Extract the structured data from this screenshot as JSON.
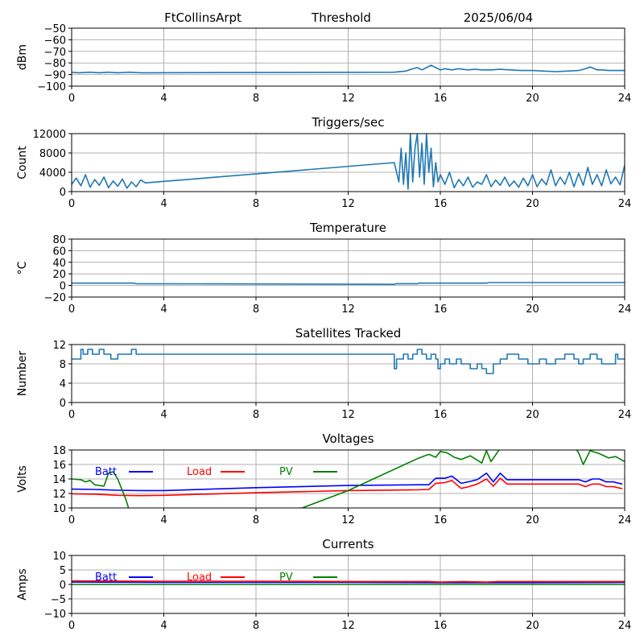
{
  "header": {
    "station": "FtCollinsArpt",
    "mode": "Threshold",
    "date": "2025/06/04"
  },
  "colors": {
    "series": "#1f77b4",
    "grid": "#b0b0b0",
    "batt": "#0000ff",
    "load": "#ff0000",
    "pv": "#008000"
  },
  "chart_data": [
    {
      "type": "line",
      "title": "",
      "xlabel": "",
      "ylabel": "dBm",
      "xlim": [
        0,
        24
      ],
      "ylim": [
        -100,
        -50
      ],
      "xticks": [
        0,
        4,
        8,
        12,
        16,
        20,
        24
      ],
      "yticks": [
        -100,
        -90,
        -80,
        -70,
        -60,
        -50
      ],
      "grid": true,
      "series": [
        {
          "color": "series",
          "x": [
            0,
            0.3,
            0.8,
            1.2,
            1.6,
            2.0,
            2.5,
            3.0,
            3.2,
            14.0,
            14.5,
            14.8,
            15.0,
            15.2,
            15.4,
            15.6,
            15.8,
            16.0,
            16.2,
            16.5,
            16.8,
            17.2,
            17.5,
            17.8,
            18.2,
            18.6,
            19.0,
            19.5,
            20.0,
            20.5,
            21.0,
            21.5,
            22.0,
            22.3,
            22.5,
            22.8,
            23.0,
            23.3,
            23.6,
            24.0
          ],
          "y": [
            -88,
            -88.5,
            -88,
            -88.5,
            -88,
            -88.5,
            -88,
            -88.5,
            -88.5,
            -88,
            -87,
            -85,
            -84,
            -86,
            -84,
            -82,
            -84,
            -86,
            -85,
            -86,
            -85,
            -86,
            -85.5,
            -86,
            -86,
            -85.5,
            -86,
            -86.5,
            -86.5,
            -87,
            -87.5,
            -87,
            -86.5,
            -85,
            -83.5,
            -86,
            -86,
            -86.5,
            -86.5,
            -86.5
          ]
        }
      ]
    },
    {
      "type": "line",
      "title": "Triggers/sec",
      "xlabel": "",
      "ylabel": "Count",
      "xlim": [
        0,
        24
      ],
      "ylim": [
        0,
        12000
      ],
      "xticks": [
        0,
        4,
        8,
        12,
        16,
        20,
        24
      ],
      "yticks": [
        0,
        4000,
        8000,
        12000
      ],
      "grid": true,
      "series": [
        {
          "color": "series",
          "x": [
            0,
            0.2,
            0.4,
            0.6,
            0.8,
            1.0,
            1.2,
            1.4,
            1.6,
            1.8,
            2.0,
            2.2,
            2.4,
            2.6,
            2.8,
            3.0,
            3.2,
            14.0,
            14.2,
            14.3,
            14.4,
            14.5,
            14.6,
            14.7,
            14.8,
            14.9,
            15.0,
            15.1,
            15.2,
            15.3,
            15.4,
            15.5,
            15.6,
            15.7,
            15.8,
            15.9,
            16.0,
            16.2,
            16.4,
            16.6,
            16.8,
            17.0,
            17.2,
            17.4,
            17.6,
            17.8,
            18.0,
            18.2,
            18.4,
            18.6,
            18.8,
            19.0,
            19.2,
            19.4,
            19.6,
            19.8,
            20.0,
            20.2,
            20.4,
            20.6,
            20.8,
            21.0,
            21.2,
            21.4,
            21.6,
            21.8,
            22.0,
            22.2,
            22.4,
            22.6,
            22.8,
            23.0,
            23.2,
            23.4,
            23.6,
            23.8,
            24.0
          ],
          "y": [
            1500,
            2800,
            1200,
            3500,
            900,
            2500,
            1300,
            3000,
            800,
            2200,
            1100,
            2600,
            700,
            2000,
            1000,
            2400,
            1800,
            6000,
            2000,
            9000,
            1500,
            8000,
            500,
            12000,
            2000,
            9000,
            12000,
            3000,
            10000,
            1500,
            12000,
            4000,
            9000,
            1000,
            6000,
            2000,
            3500,
            1500,
            4000,
            800,
            2500,
            1200,
            3000,
            900,
            2000,
            1500,
            3500,
            1000,
            2400,
            1300,
            3000,
            1100,
            2200,
            900,
            2800,
            1200,
            3500,
            1000,
            2600,
            1400,
            4500,
            1200,
            3000,
            1500,
            4000,
            1000,
            3800,
            1300,
            5000,
            1500,
            3500,
            1200,
            4500,
            1600,
            3000,
            1400,
            5500
          ]
        }
      ]
    },
    {
      "type": "line",
      "title": "Temperature",
      "xlabel": "",
      "ylabel": "°C",
      "xlim": [
        0,
        24
      ],
      "ylim": [
        -20,
        80
      ],
      "xticks": [
        0,
        4,
        8,
        12,
        16,
        20,
        24
      ],
      "yticks": [
        -20,
        0,
        20,
        40,
        60,
        80
      ],
      "grid": true,
      "series": [
        {
          "color": "series",
          "x": [
            0,
            2.7,
            2.8,
            14.0,
            14.1,
            15.0,
            15.1,
            18.0,
            18.1,
            24.0
          ],
          "y": [
            4,
            4,
            3,
            2,
            3,
            3,
            4,
            4,
            5,
            5
          ]
        }
      ]
    },
    {
      "type": "line",
      "title": "Satellites Tracked",
      "xlabel": "",
      "ylabel": "Number",
      "xlim": [
        0,
        24
      ],
      "ylim": [
        0,
        12
      ],
      "xticks": [
        0,
        4,
        8,
        12,
        16,
        20,
        24
      ],
      "yticks": [
        0,
        4,
        8,
        12
      ],
      "grid": true,
      "series": [
        {
          "color": "series",
          "step": true,
          "x": [
            0,
            0.4,
            0.5,
            0.7,
            0.9,
            1.2,
            1.4,
            1.7,
            2.0,
            2.4,
            2.6,
            2.8,
            3.2,
            14.0,
            14.1,
            14.4,
            14.6,
            14.8,
            15.0,
            15.2,
            15.4,
            15.6,
            15.8,
            15.9,
            16.0,
            16.2,
            16.4,
            16.7,
            16.9,
            17.3,
            17.6,
            17.8,
            18.0,
            18.3,
            18.6,
            18.9,
            19.4,
            19.8,
            20.3,
            20.6,
            21.0,
            21.4,
            21.8,
            22.0,
            22.2,
            22.5,
            22.8,
            23.0,
            23.2,
            23.4,
            23.6,
            23.7,
            24.0
          ],
          "y": [
            9,
            11,
            10,
            11,
            10,
            11,
            10,
            9,
            10,
            10,
            11,
            10,
            10,
            7,
            9,
            10,
            9,
            10,
            11,
            10,
            9,
            10,
            9,
            7,
            8,
            9,
            8,
            9,
            8,
            7,
            8,
            7,
            6,
            8,
            9,
            10,
            9,
            8,
            9,
            8,
            9,
            10,
            9,
            8,
            9,
            10,
            9,
            8,
            8,
            8,
            10,
            9,
            9
          ]
        }
      ]
    },
    {
      "type": "line",
      "title": "Voltages",
      "xlabel": "",
      "ylabel": "Volts",
      "xlim": [
        0,
        24
      ],
      "ylim": [
        10,
        18
      ],
      "xticks": [
        0,
        4,
        8,
        12,
        16,
        20,
        24
      ],
      "yticks": [
        10,
        12,
        14,
        16,
        18
      ],
      "grid": true,
      "legend": "top-left",
      "series": [
        {
          "name": "Batt",
          "color": "batt",
          "x": [
            0,
            1.0,
            2.0,
            3.0,
            4.0,
            8.0,
            12.0,
            15.0,
            15.5,
            15.8,
            16.2,
            16.5,
            16.9,
            17.2,
            17.6,
            18.0,
            18.3,
            18.6,
            18.9,
            19.5,
            20.0,
            21.0,
            22.0,
            22.3,
            22.6,
            22.9,
            23.2,
            23.5,
            23.9
          ],
          "y": [
            12.6,
            12.55,
            12.45,
            12.4,
            12.4,
            12.8,
            13.1,
            13.2,
            13.2,
            14.1,
            14.1,
            14.4,
            13.4,
            13.6,
            13.9,
            14.8,
            13.6,
            14.8,
            13.9,
            13.9,
            13.9,
            13.9,
            13.9,
            13.6,
            14.0,
            14.0,
            13.6,
            13.6,
            13.3
          ]
        },
        {
          "name": "Load",
          "color": "load",
          "x": [
            0,
            1.0,
            2.0,
            3.0,
            4.0,
            8.0,
            12.0,
            15.0,
            15.5,
            15.8,
            16.2,
            16.5,
            16.9,
            17.2,
            17.6,
            18.0,
            18.3,
            18.6,
            18.9,
            19.5,
            20.0,
            21.0,
            22.0,
            22.3,
            22.6,
            22.9,
            23.2,
            23.5,
            23.9
          ],
          "y": [
            11.95,
            11.9,
            11.75,
            11.7,
            11.75,
            12.1,
            12.4,
            12.5,
            12.55,
            13.4,
            13.5,
            13.8,
            12.7,
            12.9,
            13.3,
            14.0,
            13.0,
            14.1,
            13.3,
            13.3,
            13.3,
            13.3,
            13.3,
            12.95,
            13.3,
            13.3,
            12.95,
            12.95,
            12.65
          ]
        },
        {
          "name": "PV",
          "color": "pv",
          "x": [
            0,
            0.4,
            0.6,
            0.8,
            1.0,
            1.4,
            1.6,
            1.8,
            2.0,
            2.2,
            2.35,
            2.45,
            2.5,
            2.6,
            10.0,
            12.0,
            15.0,
            15.5,
            15.8,
            16.0,
            16.3,
            16.6,
            16.9,
            17.3,
            17.6,
            17.8,
            18.0,
            18.2,
            18.5,
            18.7,
            21.8,
            22.0,
            22.2,
            22.5,
            22.9,
            23.3,
            23.6,
            24.0
          ],
          "y": [
            14.0,
            13.9,
            13.6,
            13.8,
            13.2,
            13.0,
            14.8,
            15.0,
            14.0,
            12.4,
            11.2,
            10.2,
            9.5,
            9.0,
            10.0,
            12.4,
            16.8,
            17.4,
            17.0,
            17.8,
            17.6,
            17.0,
            16.7,
            17.2,
            16.6,
            16.2,
            17.9,
            16.4,
            17.8,
            18.6,
            18.6,
            17.6,
            16.0,
            17.9,
            17.5,
            16.9,
            17.1,
            16.4
          ]
        }
      ]
    },
    {
      "type": "line",
      "title": "Currents",
      "xlabel": "",
      "ylabel": "Amps",
      "xlim": [
        0,
        24
      ],
      "ylim": [
        -10,
        10
      ],
      "xticks": [
        0,
        4,
        8,
        12,
        16,
        20,
        24
      ],
      "yticks": [
        -10,
        -5,
        0,
        5,
        10
      ],
      "grid": true,
      "legend": "top-left",
      "series": [
        {
          "name": "Batt",
          "color": "batt",
          "x": [
            0,
            4,
            8,
            12,
            16,
            20,
            24
          ],
          "y": [
            0.8,
            0.7,
            0.7,
            0.7,
            0.6,
            0.6,
            0.7
          ]
        },
        {
          "name": "Load",
          "color": "load",
          "x": [
            0,
            4,
            8,
            12,
            15.5,
            16,
            17,
            18,
            18.5,
            20,
            22,
            24
          ],
          "y": [
            1.2,
            1.1,
            1.1,
            1.0,
            1.0,
            0.8,
            1.0,
            0.8,
            1.0,
            1.0,
            1.0,
            1.0
          ]
        },
        {
          "name": "PV",
          "color": "pv",
          "x": [
            0,
            4,
            8,
            12,
            16,
            20,
            24
          ],
          "y": [
            0,
            0,
            0,
            0,
            0,
            0,
            0
          ]
        }
      ]
    }
  ]
}
